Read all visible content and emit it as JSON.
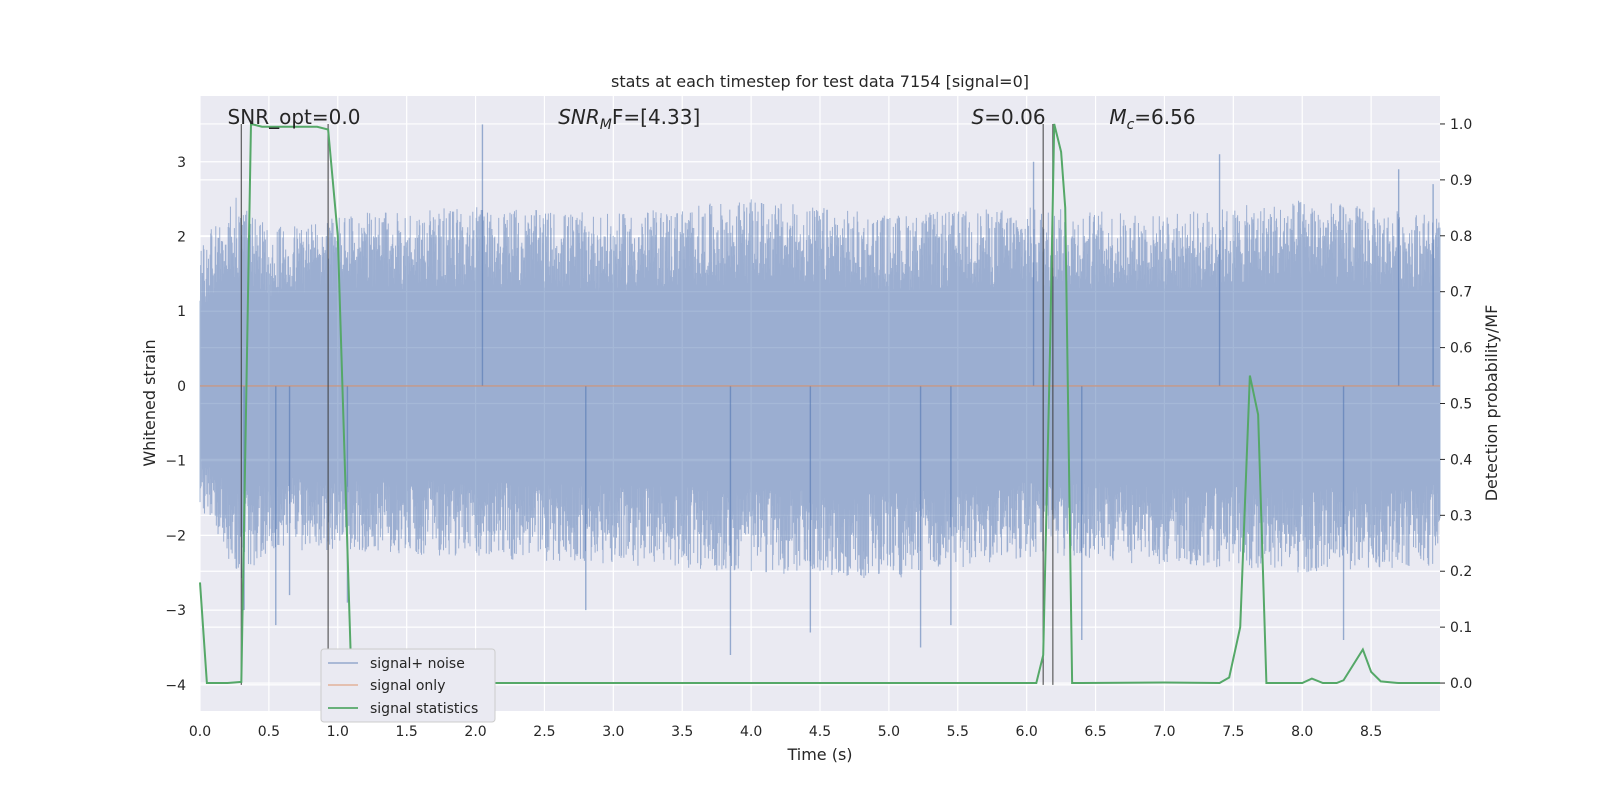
{
  "chart_data": {
    "type": "line",
    "title": "stats at each timestep for test data 7154 [signal=0]",
    "xlabel": "Time (s)",
    "ylabel_left": "Whitened strain",
    "ylabel_right": "Detection probability/MF",
    "xlim": [
      0.0,
      9.0
    ],
    "ylim_left": [
      -4.35,
      3.88
    ],
    "ylim_right": [
      -0.05,
      1.05
    ],
    "xticks": [
      "0.0",
      "0.5",
      "1.0",
      "1.5",
      "2.0",
      "2.5",
      "3.0",
      "3.5",
      "4.0",
      "4.5",
      "5.0",
      "5.5",
      "6.0",
      "6.5",
      "7.0",
      "7.5",
      "8.0",
      "8.5"
    ],
    "xtick_values": [
      0.0,
      0.5,
      1.0,
      1.5,
      2.0,
      2.5,
      3.0,
      3.5,
      4.0,
      4.5,
      5.0,
      5.5,
      6.0,
      6.5,
      7.0,
      7.5,
      8.0,
      8.5
    ],
    "yticks_left": [
      "3",
      "2",
      "1",
      "0",
      "−1",
      "−2",
      "−3",
      "−4"
    ],
    "ytick_values_left": [
      3,
      2,
      1,
      0,
      -1,
      -2,
      -3,
      -4
    ],
    "yticks_right": [
      "1.0",
      "0.9",
      "0.8",
      "0.7",
      "0.6",
      "0.5",
      "0.4",
      "0.3",
      "0.2",
      "0.1",
      "0.0"
    ],
    "ytick_values_right": [
      1.0,
      0.9,
      0.8,
      0.7,
      0.6,
      0.5,
      0.4,
      0.3,
      0.2,
      0.1,
      0.0
    ],
    "grid": true,
    "legend_position": "lower-left",
    "annotations": [
      {
        "label": "SNR_opt=0.0",
        "x": 0.2
      },
      {
        "label": "SNR",
        "sub": "M",
        "rest": "F=[4.33]",
        "x": 2.6
      },
      {
        "label": "S=0.06",
        "x": 5.6
      },
      {
        "label": "M",
        "sub": "c",
        "rest": "=6.56",
        "x": 6.6
      }
    ],
    "vlines": [
      0.3,
      0.93,
      6.12,
      6.19
    ],
    "series": [
      {
        "name": "signal+ noise",
        "color": "#4c72b0",
        "axis": "left",
        "kind": "noise",
        "envelope_upper": [
          [
            0.0,
            1.8
          ],
          [
            0.1,
            2.2
          ],
          [
            0.3,
            2.6
          ],
          [
            0.5,
            2.1
          ],
          [
            1.0,
            2.3
          ],
          [
            2.0,
            2.4
          ],
          [
            3.0,
            2.3
          ],
          [
            4.0,
            2.5
          ],
          [
            5.0,
            2.3
          ],
          [
            6.0,
            2.4
          ],
          [
            7.0,
            2.3
          ],
          [
            8.0,
            2.5
          ],
          [
            9.0,
            2.3
          ]
        ],
        "envelope_lower": [
          [
            0.0,
            -1.6
          ],
          [
            0.1,
            -2.0
          ],
          [
            0.3,
            -2.6
          ],
          [
            0.5,
            -2.2
          ],
          [
            1.0,
            -2.2
          ],
          [
            2.0,
            -2.3
          ],
          [
            3.0,
            -2.4
          ],
          [
            4.0,
            -2.5
          ],
          [
            5.0,
            -2.6
          ],
          [
            6.0,
            -2.3
          ],
          [
            7.0,
            -2.4
          ],
          [
            8.0,
            -2.5
          ],
          [
            9.0,
            -2.4
          ]
        ],
        "extreme_spikes": [
          [
            0.32,
            -3.0
          ],
          [
            0.55,
            -3.2
          ],
          [
            0.65,
            -2.8
          ],
          [
            1.07,
            -2.9
          ],
          [
            2.05,
            3.5
          ],
          [
            2.8,
            -3.0
          ],
          [
            3.85,
            -3.6
          ],
          [
            4.43,
            -3.3
          ],
          [
            5.23,
            -3.5
          ],
          [
            5.45,
            -3.2
          ],
          [
            6.05,
            3.0
          ],
          [
            6.4,
            -3.4
          ],
          [
            7.4,
            3.1
          ],
          [
            8.3,
            -3.4
          ],
          [
            8.7,
            2.9
          ],
          [
            8.95,
            2.7
          ]
        ]
      },
      {
        "name": "signal only",
        "color": "#dd8452",
        "axis": "left",
        "points": [
          [
            0.0,
            0.0
          ],
          [
            9.0,
            0.0
          ]
        ]
      },
      {
        "name": "signal statistics",
        "color": "#55a868",
        "axis": "right",
        "points": [
          [
            0.0,
            0.18
          ],
          [
            0.05,
            0.0
          ],
          [
            0.1,
            0.0
          ],
          [
            0.2,
            0.0
          ],
          [
            0.3,
            0.002
          ],
          [
            0.37,
            1.0
          ],
          [
            0.45,
            0.995
          ],
          [
            0.55,
            0.995
          ],
          [
            0.65,
            0.995
          ],
          [
            0.75,
            0.995
          ],
          [
            0.85,
            0.995
          ],
          [
            0.93,
            0.99
          ],
          [
            1.0,
            0.8
          ],
          [
            1.05,
            0.4
          ],
          [
            1.1,
            0.0
          ],
          [
            1.2,
            0.0
          ],
          [
            2.0,
            0.0
          ],
          [
            3.0,
            0.0
          ],
          [
            4.0,
            0.0
          ],
          [
            5.0,
            0.0
          ],
          [
            6.0,
            0.0
          ],
          [
            6.07,
            0.0
          ],
          [
            6.12,
            0.05
          ],
          [
            6.17,
            0.6
          ],
          [
            6.2,
            1.0
          ],
          [
            6.25,
            0.95
          ],
          [
            6.28,
            0.85
          ],
          [
            6.33,
            0.0
          ],
          [
            6.4,
            0.0
          ],
          [
            7.0,
            0.001
          ],
          [
            7.4,
            0.0
          ],
          [
            7.47,
            0.01
          ],
          [
            7.55,
            0.1
          ],
          [
            7.62,
            0.55
          ],
          [
            7.68,
            0.48
          ],
          [
            7.74,
            0.0
          ],
          [
            7.8,
            0.0
          ],
          [
            8.0,
            0.0
          ],
          [
            8.07,
            0.008
          ],
          [
            8.15,
            0.0
          ],
          [
            8.25,
            0.0
          ],
          [
            8.3,
            0.005
          ],
          [
            8.44,
            0.06
          ],
          [
            8.5,
            0.02
          ],
          [
            8.57,
            0.003
          ],
          [
            8.7,
            0.0
          ],
          [
            9.0,
            0.0
          ]
        ]
      }
    ]
  }
}
